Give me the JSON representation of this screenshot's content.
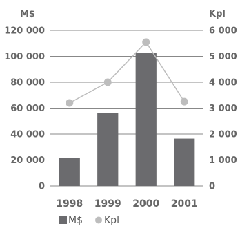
{
  "chart_data": {
    "type": "bar",
    "categories": [
      "1998",
      "1999",
      "2000",
      "2001"
    ],
    "series": [
      {
        "name": "M$",
        "type": "bar",
        "axis": "left",
        "values": [
          21500,
          56500,
          102500,
          36500
        ],
        "color": "#6b6b6e"
      },
      {
        "name": "Kpl",
        "type": "line",
        "axis": "right",
        "values": [
          3200,
          4000,
          5550,
          3250
        ],
        "color": "#bdbdbd"
      }
    ],
    "left_axis": {
      "unit_label": "M$",
      "ylim": [
        0,
        120000
      ],
      "ticks": [
        0,
        20000,
        40000,
        60000,
        80000,
        100000,
        120000
      ],
      "tick_labels": [
        "0",
        "20 000",
        "40 000",
        "60 000",
        "80 000",
        "100 000",
        "120 000"
      ]
    },
    "right_axis": {
      "unit_label": "Kpl",
      "ylim": [
        0,
        6000
      ],
      "ticks": [
        0,
        1000,
        2000,
        3000,
        4000,
        5000,
        6000
      ],
      "tick_labels": [
        "0",
        "1 000",
        "2 000",
        "3 000",
        "4 000",
        "5 000",
        "6 000"
      ]
    },
    "grid": true,
    "legend": {
      "position": "bottom-left",
      "entries": [
        {
          "label": "M$",
          "marker": "square",
          "color": "#6b6b6e"
        },
        {
          "label": "Kpl",
          "marker": "circle",
          "color": "#bdbdbd"
        }
      ]
    }
  }
}
